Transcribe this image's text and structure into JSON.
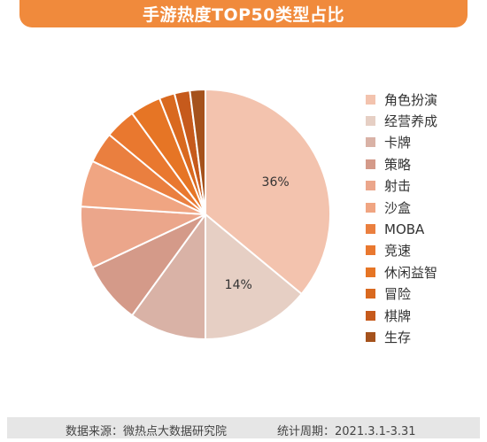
{
  "header": {
    "title": "手游热度TOP50类型占比"
  },
  "chart_data": {
    "type": "pie",
    "title": "手游热度TOP50类型占比",
    "slices": [
      {
        "name": "角色扮演",
        "value": 36,
        "color": "#f3c3ae",
        "label": "36%"
      },
      {
        "name": "经营养成",
        "value": 14,
        "color": "#e6cfc4",
        "label": "14%"
      },
      {
        "name": "卡牌",
        "value": 10,
        "color": "#d9b2a6"
      },
      {
        "name": "策略",
        "value": 8,
        "color": "#d49a89"
      },
      {
        "name": "射击",
        "value": 8,
        "color": "#eba68b"
      },
      {
        "name": "沙盒",
        "value": 6,
        "color": "#f0a582"
      },
      {
        "name": "MOBA",
        "value": 4,
        "color": "#ea7f3f"
      },
      {
        "name": "竞速",
        "value": 4,
        "color": "#e9782f"
      },
      {
        "name": "休闲益智",
        "value": 4,
        "color": "#e67525"
      },
      {
        "name": "冒险",
        "value": 2,
        "color": "#d9691f"
      },
      {
        "name": "棋牌",
        "value": 2,
        "color": "#c65a1c"
      },
      {
        "name": "生存",
        "value": 2,
        "color": "#a5521c"
      }
    ],
    "legend_position": "right"
  },
  "footer": {
    "source": "数据来源：微热点大数据研究院",
    "period": "统计周期：2021.3.1-3.31"
  }
}
